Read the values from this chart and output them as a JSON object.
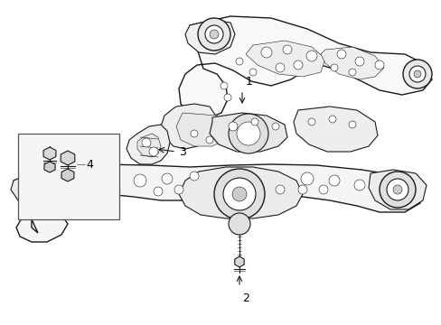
{
  "background_color": "#ffffff",
  "fig_width": 4.89,
  "fig_height": 3.6,
  "dpi": 100,
  "line_color": "#1a1a1a",
  "text_color": "#000000",
  "font_size": 9,
  "lw_main": 0.8,
  "lw_thin": 0.4,
  "lw_thick": 1.0
}
